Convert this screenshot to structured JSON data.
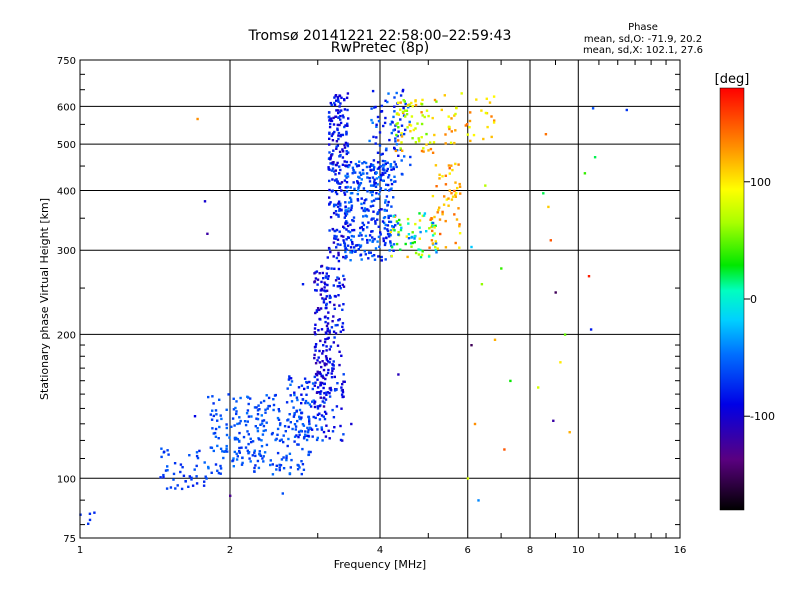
{
  "chart_data": {
    "type": "scatter",
    "title": "Tromsø 20141221 22:58:00–22:59:43",
    "subtitle": "RwPretec (8p)",
    "xlabel": "Frequency [MHz]",
    "ylabel": "Stationary phase Virtual Height [km]",
    "x_scale": "log",
    "y_scale": "log",
    "xlim": [
      1,
      16
    ],
    "ylim": [
      75,
      750
    ],
    "x_ticks": [
      1,
      2,
      4,
      6,
      8,
      10,
      16
    ],
    "x_tick_labels": [
      "1",
      "2",
      "4",
      "6",
      "8",
      "10",
      "16"
    ],
    "y_ticks": [
      75,
      100,
      200,
      300,
      400,
      500,
      600,
      750
    ],
    "y_tick_labels": [
      "75",
      "100",
      "200",
      "300",
      "400",
      "500",
      "600",
      "750"
    ],
    "grid": true,
    "stats": {
      "heading": "Phase",
      "o_line": "mean, sd,O: -71.9, 20.2",
      "x_line": "mean, sd,X: 102.1, 27.6"
    },
    "colorbar": {
      "label": "[deg]",
      "min": -180,
      "max": 180,
      "ticks": [
        100,
        0,
        -100
      ],
      "tick_labels": [
        "100",
        "0",
        "-100"
      ],
      "colormap": "rainbow"
    },
    "clusters": [
      {
        "x": [
          1.0,
          1.1
        ],
        "y": [
          78,
          85
        ],
        "phase": [
          -75,
          -70
        ],
        "n": 5
      },
      {
        "x": [
          1.45,
          1.8
        ],
        "y": [
          95,
          118
        ],
        "phase": [
          -80,
          -50
        ],
        "n": 45
      },
      {
        "x": [
          1.8,
          2.9
        ],
        "y": [
          102,
          150
        ],
        "phase": [
          -75,
          -45
        ],
        "n": 260
      },
      {
        "x": [
          2.6,
          3.1
        ],
        "y": [
          120,
          165
        ],
        "phase": [
          -90,
          -45
        ],
        "n": 80
      },
      {
        "x": [
          2.95,
          3.15
        ],
        "y": [
          140,
          280
        ],
        "phase": [
          -120,
          -75
        ],
        "n": 120
      },
      {
        "x": [
          3.1,
          3.4
        ],
        "y": [
          120,
          300
        ],
        "phase": [
          -110,
          -60
        ],
        "n": 130
      },
      {
        "x": [
          3.15,
          3.45
        ],
        "y": [
          300,
          640
        ],
        "phase": [
          -110,
          -60
        ],
        "n": 220
      },
      {
        "x": [
          3.4,
          4.3
        ],
        "y": [
          285,
          460
        ],
        "phase": [
          -90,
          -40
        ],
        "n": 300
      },
      {
        "x": [
          3.8,
          4.6
        ],
        "y": [
          420,
          650
        ],
        "phase": [
          -90,
          -40
        ],
        "n": 90
      },
      {
        "x": [
          4.2,
          5.2
        ],
        "y": [
          290,
          360
        ],
        "phase": [
          -60,
          120
        ],
        "n": 70
      },
      {
        "x": [
          4.3,
          5.2
        ],
        "y": [
          480,
          620
        ],
        "phase": [
          40,
          140
        ],
        "n": 70
      },
      {
        "x": [
          5.0,
          5.8
        ],
        "y": [
          300,
          460
        ],
        "phase": [
          90,
          150
        ],
        "n": 60
      },
      {
        "x": [
          5.3,
          6.8
        ],
        "y": [
          500,
          640
        ],
        "phase": [
          80,
          140
        ],
        "n": 40
      }
    ],
    "outliers": {
      "x": [
        1.72,
        1.78,
        1.8,
        1.7,
        2.0,
        2.55,
        2.8,
        3.5,
        4.35,
        6.0,
        6.1,
        6.2,
        6.3,
        6.5,
        6.8,
        7.0,
        7.1,
        7.3,
        8.5,
        8.8,
        9.0,
        9.2,
        9.4,
        8.7,
        8.3,
        8.9,
        10.7,
        10.8,
        10.6,
        12.5,
        10.5,
        9.6,
        10.3,
        6.1,
        6.4,
        8.6
      ],
      "y": [
        565,
        380,
        325,
        135,
        92,
        93,
        255,
        130,
        165,
        100,
        190,
        130,
        90,
        410,
        195,
        275,
        115,
        160,
        395,
        315,
        245,
        175,
        200,
        370,
        155,
        132,
        595,
        470,
        205,
        590,
        265,
        125,
        435,
        305,
        255,
        525
      ],
      "phase": [
        130,
        -100,
        -120,
        -90,
        -130,
        -60,
        -80,
        -100,
        -110,
        80,
        -150,
        130,
        -40,
        70,
        120,
        40,
        150,
        30,
        20,
        150,
        -150,
        100,
        50,
        110,
        80,
        -120,
        -60,
        20,
        -80,
        -70,
        170,
        120,
        40,
        -20,
        60,
        140
      ]
    }
  }
}
